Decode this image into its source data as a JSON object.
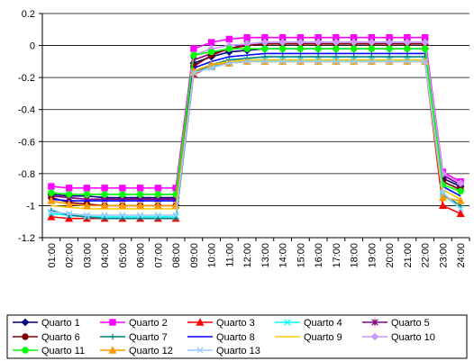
{
  "chart_data": {
    "type": "line",
    "title": "",
    "xlabel": "",
    "ylabel": "",
    "ylim": [
      -1.2,
      0.2
    ],
    "yticks": [
      "0.2",
      "0",
      "-0.2",
      "-0.4",
      "-0.6",
      "-0.8",
      "-1",
      "-1.2"
    ],
    "ytick_values": [
      0.2,
      0,
      -0.2,
      -0.4,
      -0.6,
      -0.8,
      -1,
      -1.2
    ],
    "grid": "horizontal",
    "legend_position": "bottom",
    "categories": [
      "01:00",
      "02:00",
      "03:00",
      "04:00",
      "05:00",
      "06:00",
      "07:00",
      "08:00",
      "09:00",
      "10:00",
      "11:00",
      "12:00",
      "13:00",
      "14:00",
      "15:00",
      "16:00",
      "17:00",
      "18:00",
      "19:00",
      "20:00",
      "21:00",
      "22:00",
      "23:00",
      "24:00"
    ],
    "series": [
      {
        "name": "Quarto 1",
        "color": "#000080",
        "marker": "diamond",
        "values": [
          -0.93,
          -0.94,
          -0.94,
          -0.95,
          -0.95,
          -0.95,
          -0.95,
          -0.95,
          -0.11,
          -0.07,
          -0.04,
          -0.03,
          -0.02,
          -0.02,
          -0.02,
          -0.02,
          -0.02,
          -0.02,
          -0.02,
          -0.02,
          -0.02,
          -0.02,
          -0.83,
          -0.88
        ]
      },
      {
        "name": "Quarto 2",
        "color": "#FF00FF",
        "marker": "square",
        "values": [
          -0.88,
          -0.89,
          -0.89,
          -0.89,
          -0.89,
          -0.89,
          -0.89,
          -0.89,
          -0.02,
          0.02,
          0.04,
          0.05,
          0.05,
          0.05,
          0.05,
          0.05,
          0.05,
          0.05,
          0.05,
          0.05,
          0.05,
          0.05,
          -0.79,
          -0.85
        ]
      },
      {
        "name": "Quarto 3",
        "color": "#FF0000",
        "marker": "triangle",
        "values": [
          -1.07,
          -1.08,
          -1.08,
          -1.08,
          -1.08,
          -1.08,
          -1.08,
          -1.08,
          -0.18,
          -0.13,
          -0.11,
          -0.1,
          -0.1,
          -0.1,
          -0.1,
          -0.1,
          -0.1,
          -0.1,
          -0.1,
          -0.1,
          -0.1,
          -0.1,
          -1.0,
          -1.05
        ]
      },
      {
        "name": "Quarto 4",
        "color": "#00FFFF",
        "marker": "x",
        "values": [
          -1.05,
          -1.06,
          -1.07,
          -1.07,
          -1.07,
          -1.07,
          -1.07,
          -1.07,
          -0.17,
          -0.13,
          -0.1,
          -0.09,
          -0.09,
          -0.09,
          -0.09,
          -0.09,
          -0.09,
          -0.09,
          -0.09,
          -0.09,
          -0.09,
          -0.09,
          -0.93,
          -1.02
        ]
      },
      {
        "name": "Quarto 5",
        "color": "#800080",
        "marker": "star",
        "values": [
          -0.94,
          -0.95,
          -0.96,
          -0.96,
          -0.96,
          -0.96,
          -0.96,
          -0.96,
          -0.09,
          -0.05,
          -0.02,
          0.01,
          0.02,
          0.02,
          0.02,
          0.02,
          0.02,
          0.02,
          0.02,
          0.02,
          0.02,
          0.02,
          -0.81,
          -0.87
        ]
      },
      {
        "name": "Quarto 6",
        "color": "#800000",
        "marker": "circle",
        "values": [
          -0.95,
          -0.98,
          -0.99,
          -1.0,
          -1.0,
          -1.0,
          -1.0,
          -1.0,
          -0.13,
          -0.06,
          -0.02,
          0.0,
          0.01,
          0.01,
          0.01,
          0.01,
          0.01,
          0.01,
          0.01,
          0.01,
          0.01,
          0.01,
          -0.85,
          -0.9
        ]
      },
      {
        "name": "Quarto 7",
        "color": "#008080",
        "marker": "plus",
        "values": [
          -1.03,
          -1.06,
          -1.07,
          -1.08,
          -1.08,
          -1.08,
          -1.08,
          -1.08,
          -0.17,
          -0.12,
          -0.09,
          -0.08,
          -0.07,
          -0.07,
          -0.07,
          -0.07,
          -0.07,
          -0.07,
          -0.07,
          -0.07,
          -0.07,
          -0.07,
          -0.93,
          -1.0
        ]
      },
      {
        "name": "Quarto 8",
        "color": "#0000FF",
        "marker": "none",
        "values": [
          -0.96,
          -0.97,
          -0.97,
          -0.97,
          -0.97,
          -0.97,
          -0.97,
          -0.97,
          -0.14,
          -0.1,
          -0.07,
          -0.06,
          -0.05,
          -0.05,
          -0.05,
          -0.05,
          -0.05,
          -0.05,
          -0.05,
          -0.05,
          -0.05,
          -0.05,
          -0.88,
          -0.94
        ]
      },
      {
        "name": "Quarto 9",
        "color": "#FFCC00",
        "marker": "none",
        "values": [
          -1.0,
          -1.01,
          -1.02,
          -1.02,
          -1.02,
          -1.02,
          -1.02,
          -1.02,
          -0.16,
          -0.12,
          -0.1,
          -0.09,
          -0.09,
          -0.09,
          -0.09,
          -0.09,
          -0.09,
          -0.09,
          -0.09,
          -0.09,
          -0.09,
          -0.09,
          -0.9,
          -0.96
        ]
      },
      {
        "name": "Quarto 10",
        "color": "#CC99FF",
        "marker": "diamond",
        "values": [
          -0.92,
          -0.93,
          -0.93,
          -0.93,
          -0.93,
          -0.93,
          -0.93,
          -0.93,
          -0.06,
          -0.02,
          0.0,
          0.01,
          0.02,
          0.02,
          0.02,
          0.02,
          0.02,
          0.02,
          0.02,
          0.02,
          0.02,
          0.02,
          -0.8,
          -0.86
        ]
      },
      {
        "name": "Quarto 11",
        "color": "#00FF00",
        "marker": "circle",
        "values": [
          -0.92,
          -0.93,
          -0.93,
          -0.93,
          -0.93,
          -0.93,
          -0.93,
          -0.93,
          -0.06,
          -0.04,
          -0.02,
          -0.02,
          -0.02,
          -0.02,
          -0.02,
          -0.02,
          -0.02,
          -0.02,
          -0.02,
          -0.02,
          -0.02,
          -0.02,
          -0.87,
          -0.91
        ]
      },
      {
        "name": "Quarto 12",
        "color": "#FF9900",
        "marker": "triangle",
        "values": [
          -0.97,
          -0.99,
          -1.0,
          -1.0,
          -1.0,
          -1.0,
          -1.0,
          -1.0,
          -0.16,
          -0.12,
          -0.11,
          -0.1,
          -0.1,
          -0.1,
          -0.1,
          -0.1,
          -0.1,
          -0.1,
          -0.1,
          -0.1,
          -0.1,
          -0.1,
          -0.95,
          -0.97
        ]
      },
      {
        "name": "Quarto 13",
        "color": "#99CCFF",
        "marker": "x",
        "values": [
          -1.04,
          -1.05,
          -1.06,
          -1.06,
          -1.06,
          -1.06,
          -1.06,
          -1.06,
          -0.17,
          -0.14,
          -0.11,
          -0.1,
          -0.1,
          -0.1,
          -0.1,
          -0.1,
          -0.1,
          -0.1,
          -0.1,
          -0.1,
          -0.1,
          -0.1,
          -0.92,
          -1.02
        ]
      }
    ]
  }
}
